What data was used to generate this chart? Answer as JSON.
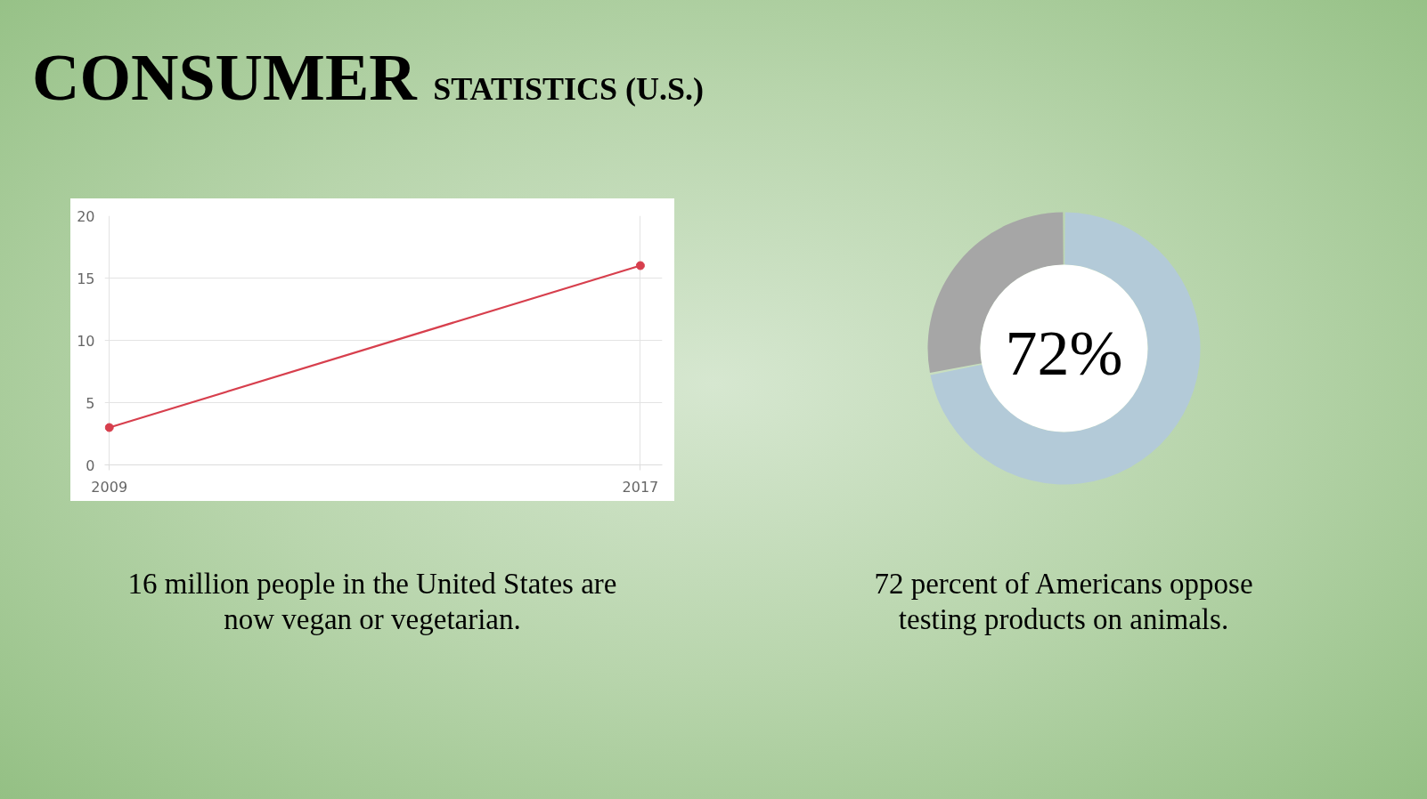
{
  "chart_data": [
    {
      "type": "line",
      "title": "CONSUMER STATISTICS (U.S.)",
      "x": [
        2009,
        2017
      ],
      "xlim": [
        2008.93,
        2017.33
      ],
      "xticks": [
        2009,
        2017
      ],
      "series": [
        {
          "color": "#d73f4d",
          "values": [
            3,
            16
          ]
        }
      ],
      "ylim": [
        0,
        20
      ],
      "yticks": [
        0,
        5,
        10,
        15,
        20
      ],
      "grid": true,
      "marker": "circle",
      "line_style": "solid",
      "annotations": [
        "16 million people in the United States are\nnow vegan or vegetarian."
      ]
    },
    {
      "type": "donut",
      "categories": [
        null,
        null
      ],
      "values": [
        72,
        28
      ],
      "colors": [
        "#b3cad8",
        "#a6a6a6"
      ],
      "value_labels": [
        "72%",
        null
      ],
      "annotations": [
        "72 percent of Americans oppose\ntesting products on animals."
      ]
    }
  ]
}
